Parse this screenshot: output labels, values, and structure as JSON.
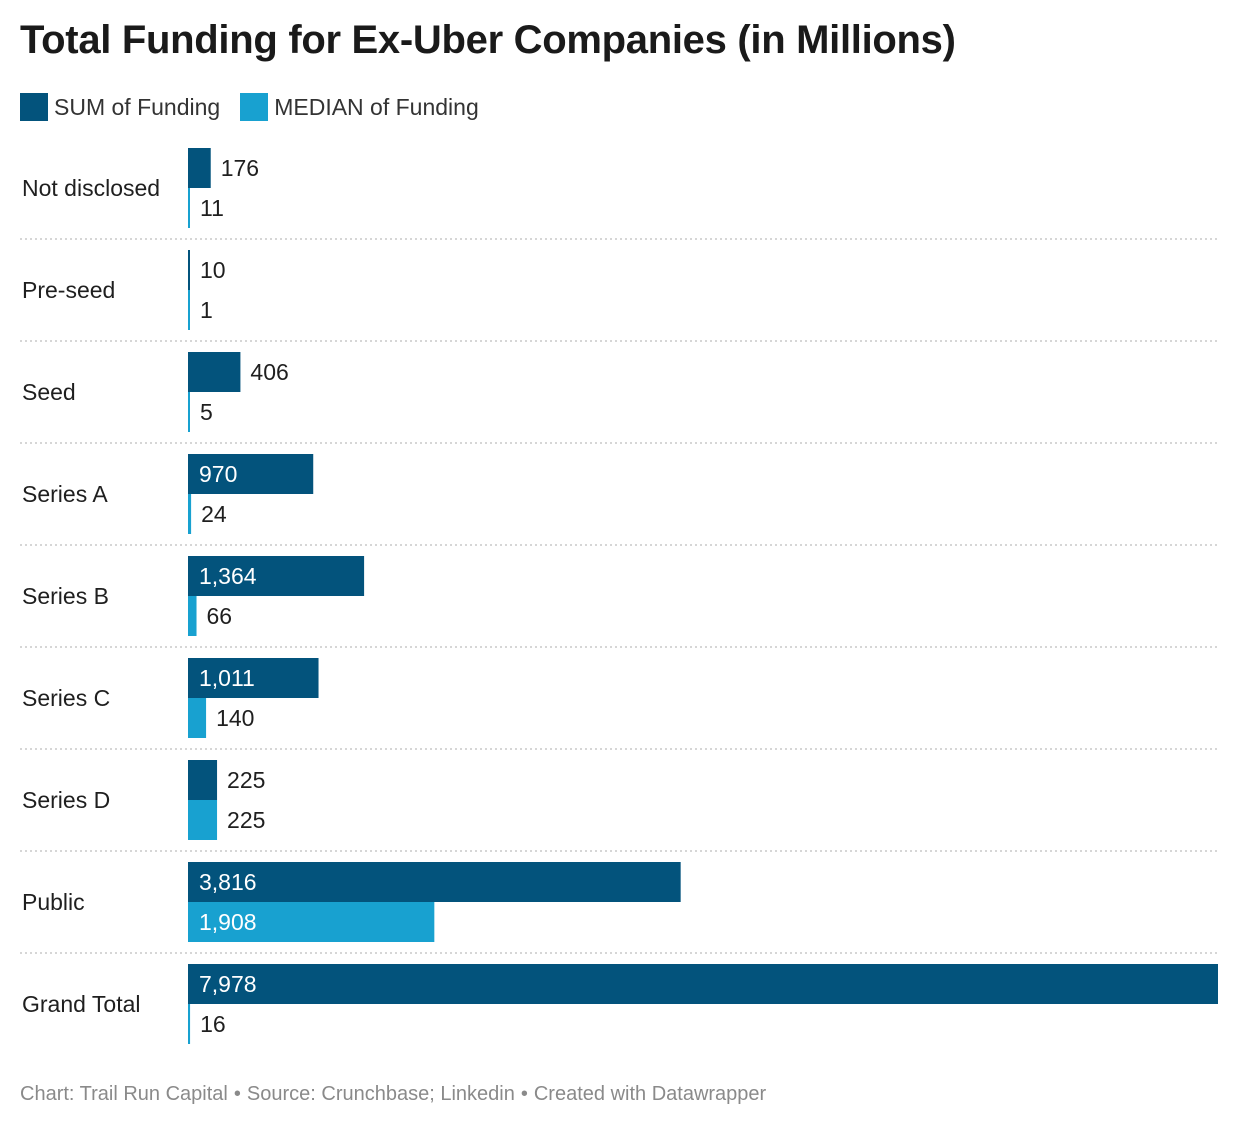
{
  "title": "Total Funding for Ex-Uber Companies (in Millions)",
  "colors": {
    "sum": "#03537c",
    "median": "#18a1d0",
    "grid": "#c8c8c8"
  },
  "legend": [
    {
      "label": "SUM of Funding",
      "color": "#03537c"
    },
    {
      "label": "MEDIAN of Funding",
      "color": "#18a1d0"
    }
  ],
  "chart_data": {
    "type": "bar",
    "orientation": "horizontal",
    "categories": [
      "Not disclosed",
      "Pre-seed",
      "Seed",
      "Series A",
      "Series B",
      "Series C",
      "Series D",
      "Public",
      "Grand Total"
    ],
    "series": [
      {
        "name": "SUM of Funding",
        "values": [
          176,
          10,
          406,
          970,
          1364,
          1011,
          225,
          3816,
          7978
        ],
        "labels": [
          "176",
          "10",
          "406",
          "970",
          "1,364",
          "1,011",
          "225",
          "3,816",
          "7,978"
        ]
      },
      {
        "name": "MEDIAN of Funding",
        "values": [
          11,
          1,
          5,
          24,
          66,
          140,
          225,
          1908,
          16
        ],
        "labels": [
          "11",
          "1",
          "5",
          "24",
          "66",
          "140",
          "225",
          "1,908",
          "16"
        ]
      }
    ],
    "xlim": [
      0,
      7978
    ],
    "legend_position": "top-left",
    "grid": "dotted separators between categories"
  },
  "footer": {
    "chart": "Chart: Trail Run Capital",
    "source": "Source: Crunchbase; Linkedin",
    "created": "Created with Datawrapper",
    "separator": "•"
  }
}
